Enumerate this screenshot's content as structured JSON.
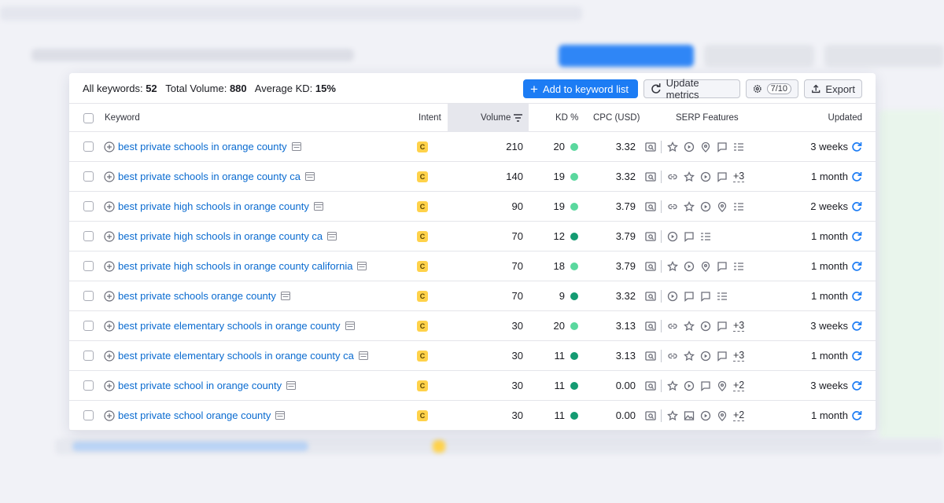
{
  "summary": {
    "all_keywords_label": "All keywords:",
    "all_keywords_value": "52",
    "total_volume_label": "Total Volume:",
    "total_volume_value": "880",
    "average_kd_label": "Average KD:",
    "average_kd_value": "15%"
  },
  "buttons": {
    "add": "Add to keyword list",
    "update": "Update metrics",
    "quota": "7/10",
    "export": "Export"
  },
  "columns": {
    "keyword": "Keyword",
    "intent": "Intent",
    "volume": "Volume",
    "kd": "KD %",
    "cpc": "CPC (USD)",
    "serp": "SERP Features",
    "updated": "Updated"
  },
  "rows": [
    {
      "keyword": "best private schools in orange county",
      "intent": "C",
      "volume": "210",
      "kd": "20",
      "kd_color": "#5ad89e",
      "cpc": "3.32",
      "updated": "3 weeks"
    },
    {
      "keyword": "best private schools in orange county ca",
      "intent": "C",
      "volume": "140",
      "kd": "19",
      "kd_color": "#5ad89e",
      "cpc": "3.32",
      "serp_more": "+3",
      "updated": "1 month"
    },
    {
      "keyword": "best private high schools in orange county",
      "intent": "C",
      "volume": "90",
      "kd": "19",
      "kd_color": "#5ad89e",
      "cpc": "3.79",
      "updated": "2 weeks"
    },
    {
      "keyword": "best private high schools in orange county ca",
      "intent": "C",
      "volume": "70",
      "kd": "12",
      "kd_color": "#149b72",
      "cpc": "3.79",
      "updated": "1 month"
    },
    {
      "keyword": "best private high schools in orange county california",
      "intent": "C",
      "volume": "70",
      "kd": "18",
      "kd_color": "#5ad89e",
      "cpc": "3.79",
      "updated": "1 month"
    },
    {
      "keyword": "best private schools orange county",
      "intent": "C",
      "volume": "70",
      "kd": "9",
      "kd_color": "#149b72",
      "cpc": "3.32",
      "updated": "1 month"
    },
    {
      "keyword": "best private elementary schools in orange county",
      "intent": "C",
      "volume": "30",
      "kd": "20",
      "kd_color": "#5ad89e",
      "cpc": "3.13",
      "serp_more": "+3",
      "updated": "3 weeks"
    },
    {
      "keyword": "best private elementary schools in orange county ca",
      "intent": "C",
      "volume": "30",
      "kd": "11",
      "kd_color": "#149b72",
      "cpc": "3.13",
      "serp_more": "+3",
      "updated": "1 month"
    },
    {
      "keyword": "best private school in orange county",
      "intent": "C",
      "volume": "30",
      "kd": "11",
      "kd_color": "#149b72",
      "cpc": "0.00",
      "serp_more": "+2",
      "updated": "3 weeks"
    },
    {
      "keyword": "best private school orange county",
      "intent": "C",
      "volume": "30",
      "kd": "11",
      "kd_color": "#149b72",
      "cpc": "0.00",
      "serp_more": "+2",
      "updated": "1 month"
    }
  ]
}
